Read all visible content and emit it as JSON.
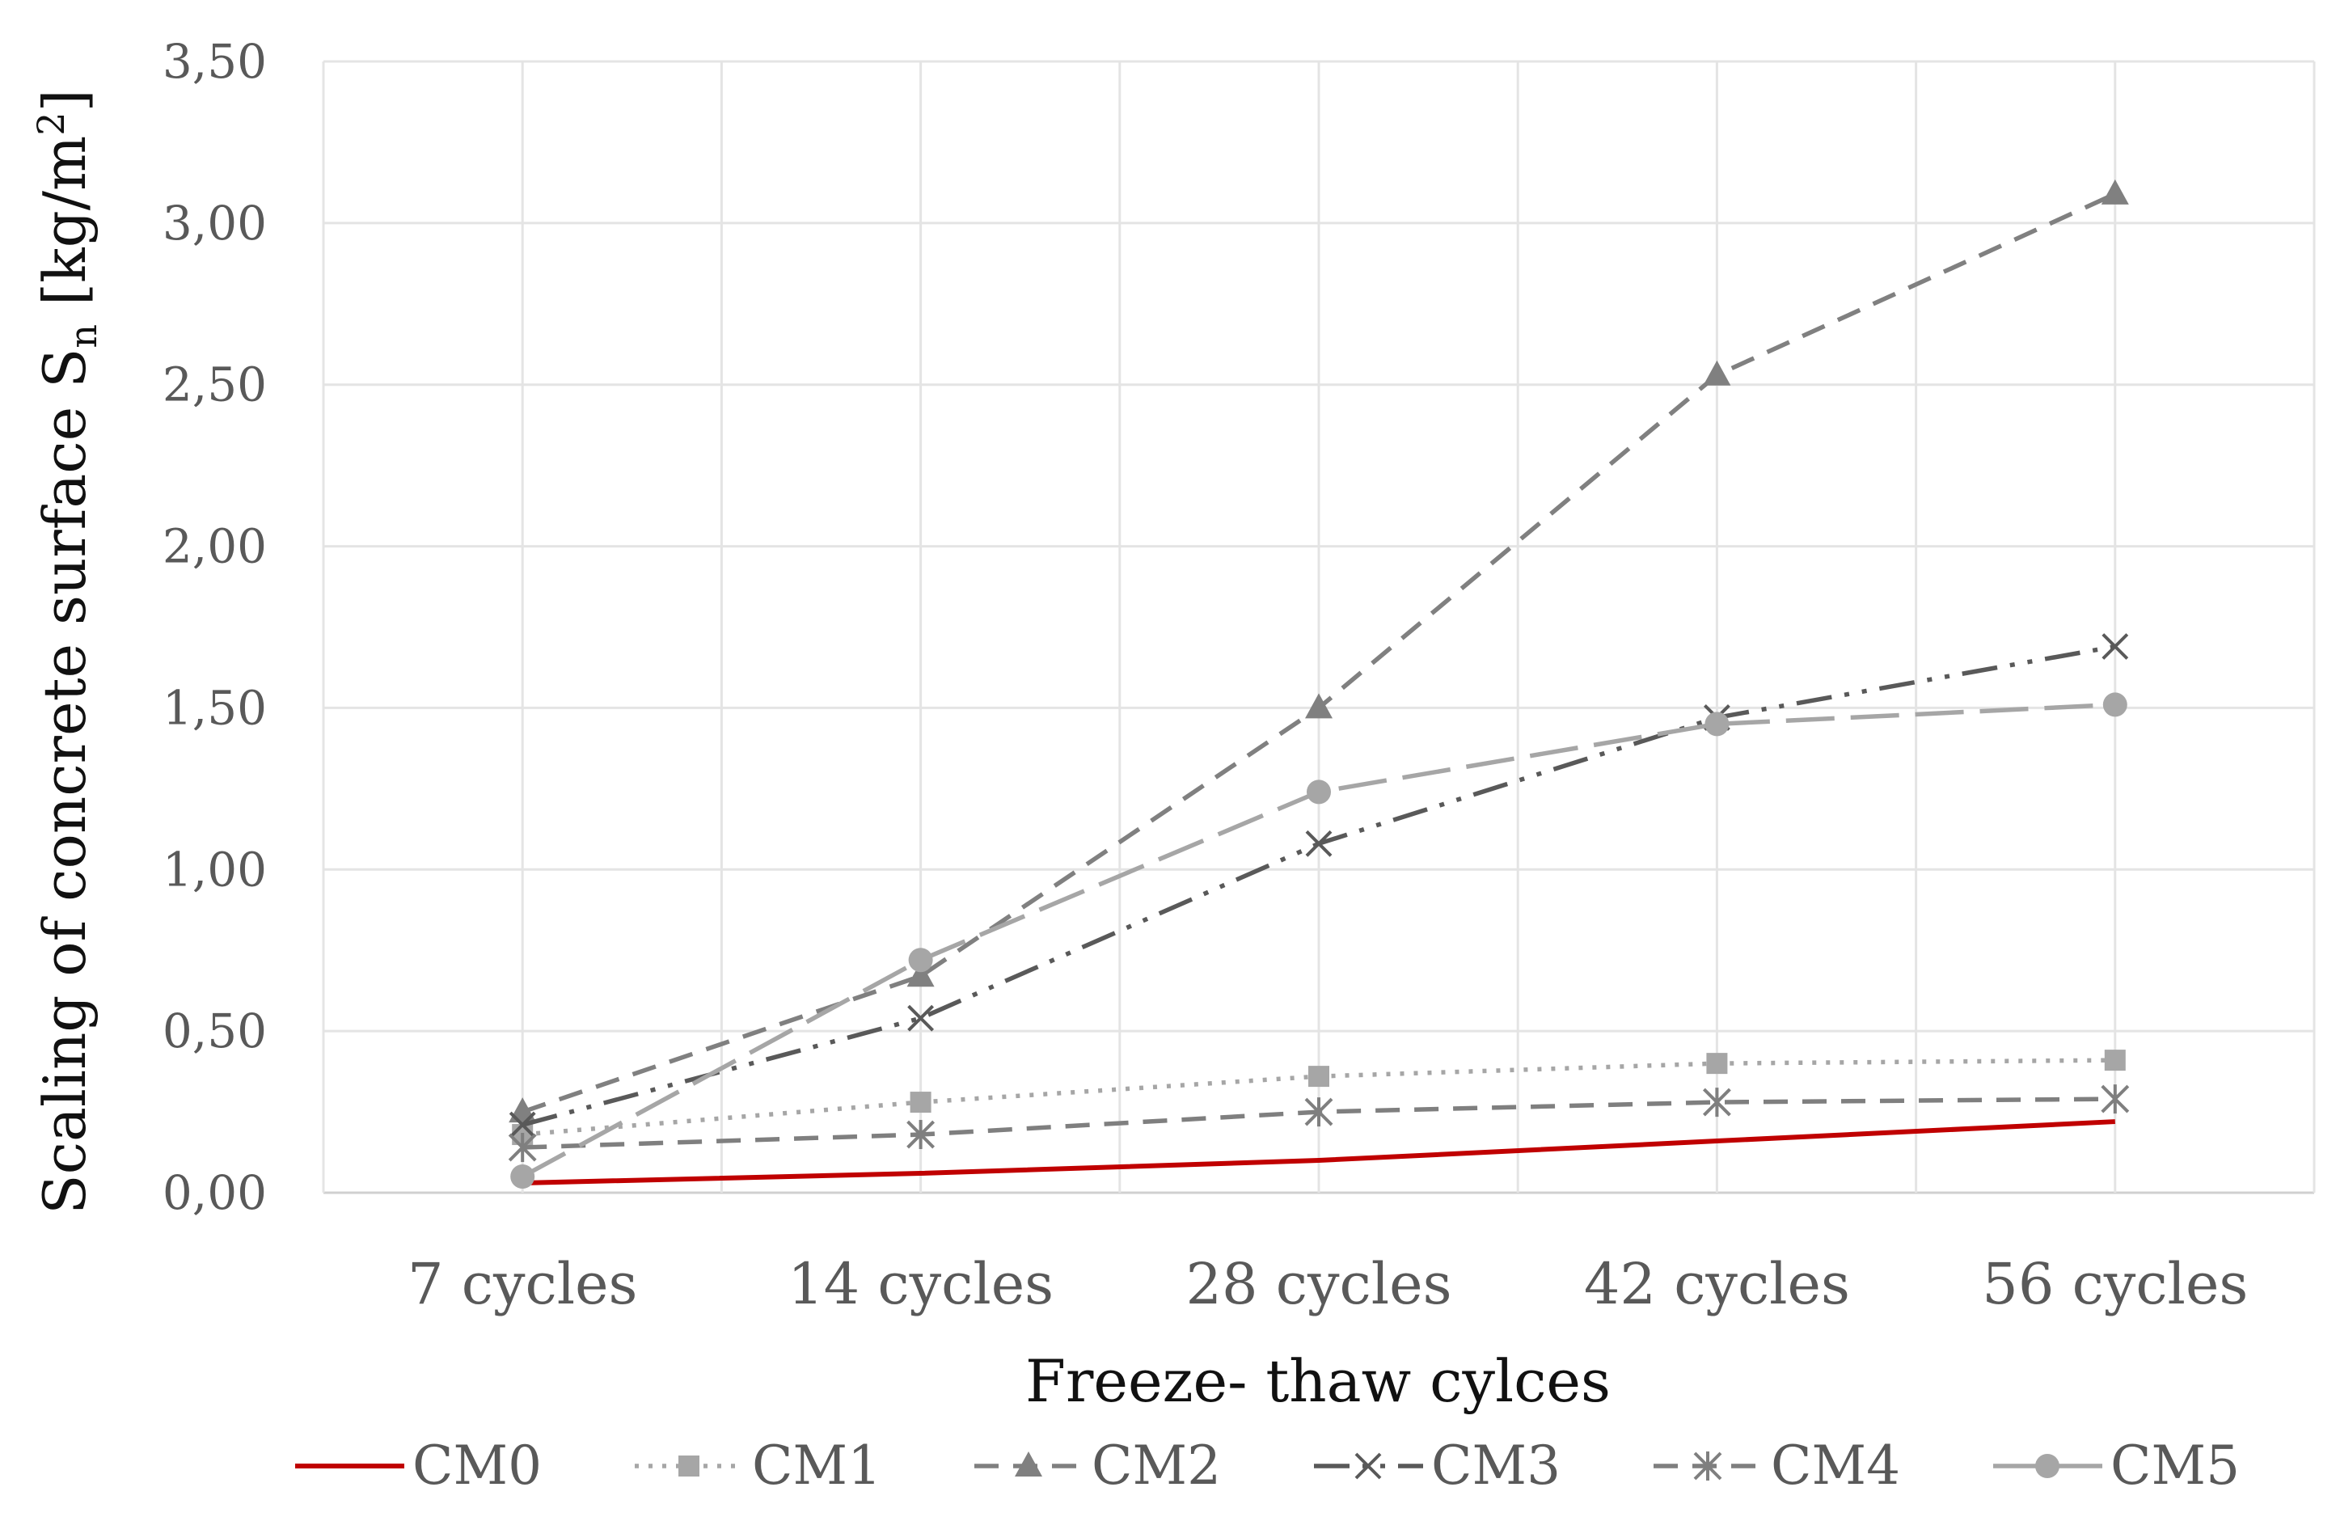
{
  "chart_data": {
    "type": "line",
    "title": "",
    "xlabel": "Freeze- thaw cylces",
    "ylabel_main": "Scaling of concrete surface S",
    "ylabel_sub": "n",
    "ylabel_unit_pre": "[kg/m",
    "ylabel_unit_sup": "2",
    "ylabel_unit_post": "]",
    "categories": [
      "7 cycles",
      "14 cycles",
      "28 cycles",
      "42 cycles",
      "56 cycles"
    ],
    "ylim": [
      0,
      3.5
    ],
    "ytick_values": [
      0,
      0.5,
      1,
      1.5,
      2,
      2.5,
      3,
      3.5
    ],
    "ytick_labels": [
      "0,00",
      "0,50",
      "1,00",
      "1,50",
      "2,00",
      "2,50",
      "3,00",
      "3,50"
    ],
    "grid": true,
    "legend_position": "bottom",
    "series": [
      {
        "name": "CM0",
        "values": [
          0.03,
          0.06,
          0.1,
          0.16,
          0.22
        ],
        "color": "#c00000",
        "dash": "solid",
        "marker": "none"
      },
      {
        "name": "CM1",
        "values": [
          0.18,
          0.28,
          0.36,
          0.4,
          0.41
        ],
        "color": "#a6a6a6",
        "dash": "dot",
        "marker": "square"
      },
      {
        "name": "CM2",
        "values": [
          0.25,
          0.67,
          1.5,
          2.53,
          3.09
        ],
        "color": "#808080",
        "dash": "dash",
        "marker": "triangle"
      },
      {
        "name": "CM3",
        "values": [
          0.21,
          0.54,
          1.08,
          1.47,
          1.69
        ],
        "color": "#595959",
        "dash": "dashdotdot",
        "marker": "x"
      },
      {
        "name": "CM4",
        "values": [
          0.14,
          0.18,
          0.25,
          0.28,
          0.29
        ],
        "color": "#7f7f7f",
        "dash": "dash",
        "marker": "star"
      },
      {
        "name": "CM5",
        "values": [
          0.05,
          0.72,
          1.24,
          1.45,
          1.51
        ],
        "color": "#a6a6a6",
        "dash": "longdash",
        "marker": "circle"
      }
    ]
  }
}
